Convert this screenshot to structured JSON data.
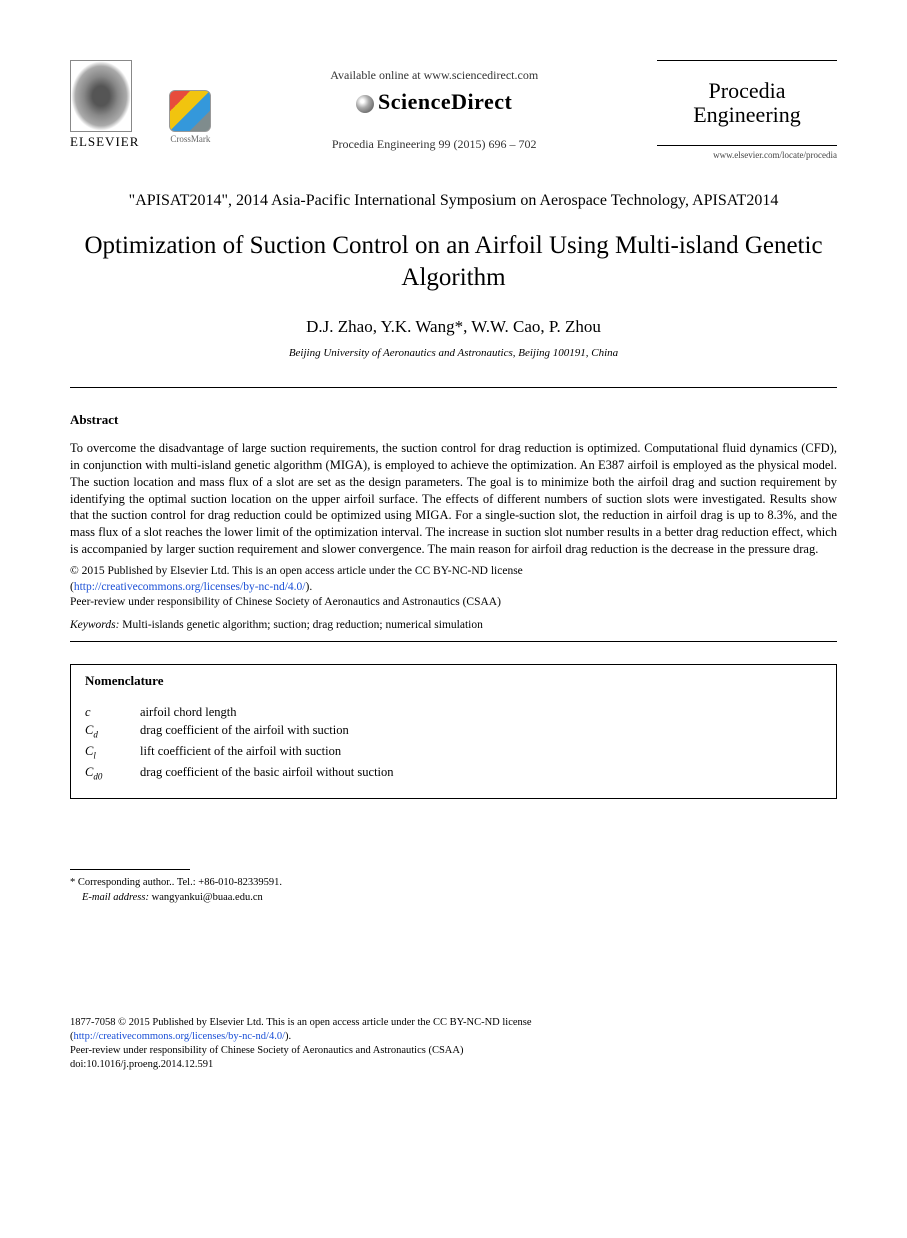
{
  "header": {
    "publisher_label": "ELSEVIER",
    "crossmark_label": "CrossMark",
    "available_text": "Available online at www.sciencedirect.com",
    "sciencedirect_label": "ScienceDirect",
    "citation": "Procedia Engineering 99 (2015) 696 – 702",
    "journal_name_line1": "Procedia",
    "journal_name_line2": "Engineering",
    "journal_url": "www.elsevier.com/locate/procedia"
  },
  "conference": "\"APISAT2014\", 2014 Asia-Pacific International Symposium on Aerospace Technology, APISAT2014",
  "title": "Optimization of Suction Control on an Airfoil Using Multi-island Genetic Algorithm",
  "authors": "D.J. Zhao, Y.K. Wang*, W.W. Cao, P. Zhou",
  "affiliation": "Beijing University of Aeronautics and Astronautics, Beijing 100191, China",
  "abstract": {
    "heading": "Abstract",
    "body": "To overcome the disadvantage of large suction requirements, the suction control for drag reduction is optimized. Computational fluid dynamics (CFD), in conjunction with multi-island genetic algorithm (MIGA), is employed to achieve the optimization. An E387 airfoil is employed as the physical model. The suction location and mass flux of a slot are set as the design parameters. The goal is to minimize both the airfoil drag and suction requirement by identifying the optimal suction location on the upper airfoil surface. The effects of different numbers of suction slots were investigated. Results show that the suction control for drag reduction could be optimized using MIGA. For a single-suction slot, the reduction in airfoil drag is up to 8.3%, and the mass flux of a slot reaches the lower limit of the optimization interval. The increase in suction slot number results in a better drag reduction effect, which is accompanied by larger suction requirement and slower convergence. The main reason for airfoil drag reduction is the decrease in the pressure drag."
  },
  "copyright": {
    "line1": "© 2015 Published by Elsevier Ltd. This is an open access article under the CC BY-NC-ND license",
    "license_url_text": "http://creativecommons.org/licenses/by-nc-nd/4.0/",
    "line2": "Peer-review under responsibility of Chinese Society of Aeronautics and Astronautics (CSAA)"
  },
  "keywords": {
    "label": "Keywords:",
    "text": " Multi-islands genetic algorithm; suction; drag reduction; numerical simulation"
  },
  "nomenclature": {
    "heading": "Nomenclature",
    "items": [
      {
        "symbol": "c",
        "sub": "",
        "desc": "airfoil chord length"
      },
      {
        "symbol": "C",
        "sub": "d",
        "desc": "drag coefficient of the airfoil with suction"
      },
      {
        "symbol": "C",
        "sub": "l",
        "desc": "lift coefficient of the airfoil with suction"
      },
      {
        "symbol": "C",
        "sub": "d0",
        "desc": "drag coefficient of the basic airfoil without suction"
      }
    ]
  },
  "footnotes": {
    "corresponding": "* Corresponding author.. Tel.: +86-010-82339591.",
    "email_label": "E-mail address:",
    "email": " wangyankui@buaa.edu.cn"
  },
  "footer": {
    "issn_line": "1877-7058 © 2015 Published by Elsevier Ltd. This is an open access article under the CC BY-NC-ND license",
    "license_url_text": "http://creativecommons.org/licenses/by-nc-nd/4.0/",
    "peer_review": "Peer-review under responsibility of Chinese Society of Aeronautics and Astronautics (CSAA)",
    "doi": "doi:10.1016/j.proeng.2014.12.591"
  }
}
